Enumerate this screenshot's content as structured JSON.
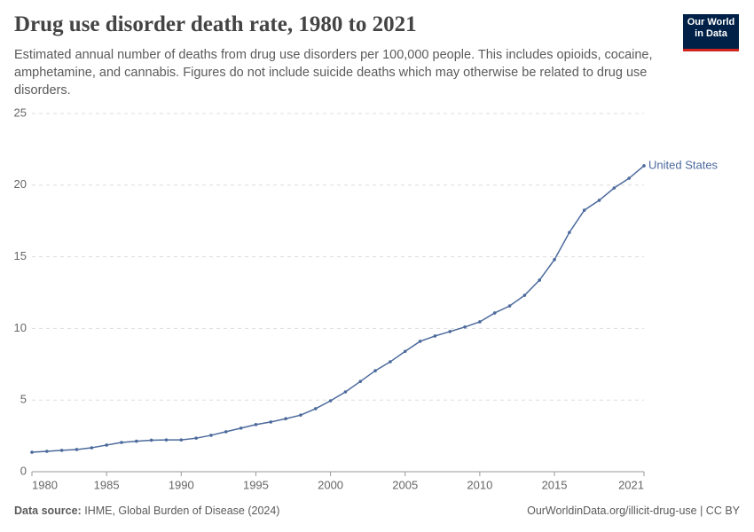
{
  "chart_data": {
    "type": "line",
    "title": "Drug use disorder death rate, 1980 to 2021",
    "subtitle": "Estimated annual number of deaths from drug use disorders per 100,000 people. This includes opioids, cocaine, amphetamine, and cannabis. Figures do not include suicide deaths which may otherwise be related to drug use disorders.",
    "logo": [
      "Our World",
      "in Data"
    ],
    "source_label": "Data source:",
    "source": "IHME, Global Burden of Disease (2024)",
    "url": "OurWorldinData.org/illicit-drug-use | CC BY",
    "x": [
      1980,
      1981,
      1982,
      1983,
      1984,
      1985,
      1986,
      1987,
      1988,
      1989,
      1990,
      1991,
      1992,
      1993,
      1994,
      1995,
      1996,
      1997,
      1998,
      1999,
      2000,
      2001,
      2002,
      2003,
      2004,
      2005,
      2006,
      2007,
      2008,
      2009,
      2010,
      2011,
      2012,
      2013,
      2014,
      2015,
      2016,
      2017,
      2018,
      2019,
      2020,
      2021
    ],
    "series": [
      {
        "name": "United States",
        "color": "#4c6a9c",
        "values": [
          1.36,
          1.42,
          1.49,
          1.55,
          1.67,
          1.86,
          2.04,
          2.13,
          2.2,
          2.22,
          2.22,
          2.34,
          2.54,
          2.79,
          3.04,
          3.29,
          3.47,
          3.7,
          3.95,
          4.4,
          4.95,
          5.57,
          6.3,
          7.05,
          7.67,
          8.4,
          9.1,
          9.47,
          9.78,
          10.1,
          10.46,
          11.08,
          11.57,
          12.31,
          13.37,
          14.8,
          16.7,
          18.25,
          18.94,
          19.8,
          20.48,
          21.35
        ]
      }
    ],
    "xlim": [
      1980,
      2021
    ],
    "xticks": [
      1980,
      1985,
      1990,
      1995,
      2000,
      2005,
      2010,
      2015,
      2021
    ],
    "ylim": [
      0,
      25
    ],
    "yticks": [
      0,
      5,
      10,
      15,
      20,
      25
    ],
    "grid": true
  }
}
